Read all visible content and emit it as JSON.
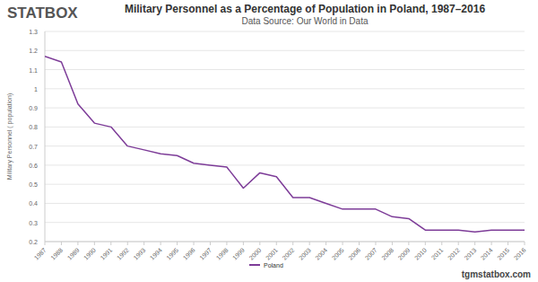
{
  "chart_data": {
    "type": "line",
    "logo": "STATBOX",
    "title": "Military Personnel as a Percentage of Population in Poland, 1987–2016",
    "subtitle": "Data Source: Our World in Data",
    "y_label": "Military Personnel ( population)",
    "footer": "tgmstatbox.com",
    "categories": [
      "1987",
      "1988",
      "1989",
      "1990",
      "1991",
      "1992",
      "1993",
      "1994",
      "1995",
      "1996",
      "1997",
      "1998",
      "1999",
      "2000",
      "2001",
      "2002",
      "2003",
      "2004",
      "2005",
      "2006",
      "2007",
      "2008",
      "2009",
      "2010",
      "2011",
      "2012",
      "2013",
      "2014",
      "2015",
      "2016"
    ],
    "series": [
      {
        "name": "Poland",
        "color": "#7d3c98",
        "values": [
          1.17,
          1.14,
          0.92,
          0.82,
          0.8,
          0.7,
          0.68,
          0.66,
          0.65,
          0.61,
          0.6,
          0.59,
          0.48,
          0.56,
          0.54,
          0.43,
          0.43,
          0.4,
          0.37,
          0.37,
          0.37,
          0.33,
          0.32,
          0.26,
          0.26,
          0.26,
          0.25,
          0.26,
          0.26,
          0.26
        ]
      }
    ],
    "ylim": [
      0.2,
      1.3
    ],
    "yticks": [
      0.2,
      0.3,
      0.4,
      0.5,
      0.6,
      0.7,
      0.8,
      0.9,
      1,
      1.1,
      1.2,
      1.3
    ],
    "grid": true,
    "legend": "bottom"
  }
}
